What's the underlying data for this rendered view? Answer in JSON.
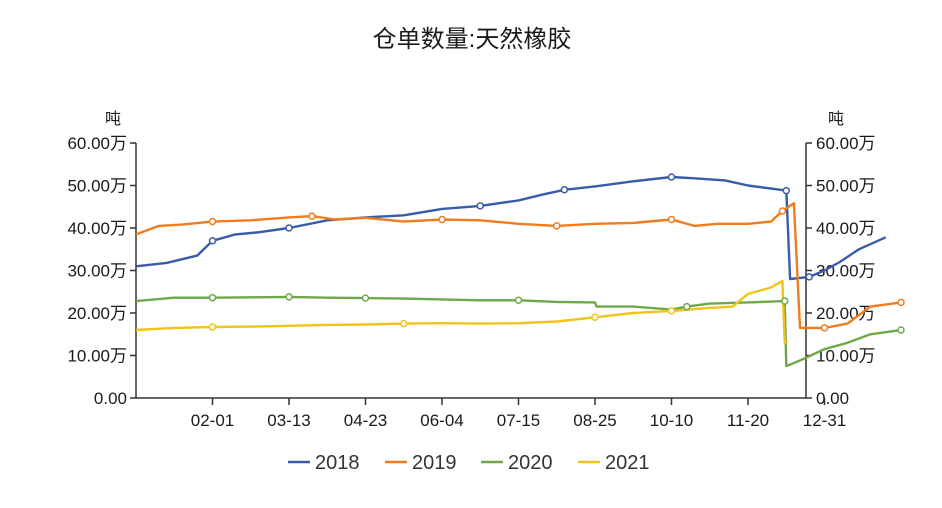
{
  "chart_data": {
    "type": "line",
    "title": "仓单数量:天然橡胶",
    "ylabel_left": "吨",
    "ylabel_right": "吨",
    "ylim": [
      0,
      600000
    ],
    "y_ticks": [
      "0.00",
      "10.00万",
      "20.00万",
      "30.00万",
      "40.00万",
      "50.00万",
      "60.00万"
    ],
    "x_ticks": [
      "02-01",
      "03-13",
      "04-23",
      "06-04",
      "07-15",
      "08-25",
      "10-10",
      "11-20",
      "12-31"
    ],
    "legend_position": "bottom",
    "grid": false,
    "series": [
      {
        "name": "2018",
        "color": "#3a5ba8",
        "points": [
          [
            0.0,
            310000
          ],
          [
            0.4,
            318000
          ],
          [
            0.8,
            335000
          ],
          [
            1.0,
            370000
          ],
          [
            1.3,
            385000
          ],
          [
            1.6,
            390000
          ],
          [
            2.0,
            400000
          ],
          [
            2.5,
            418000
          ],
          [
            3.0,
            425000
          ],
          [
            3.5,
            430000
          ],
          [
            4.0,
            445000
          ],
          [
            4.5,
            452000
          ],
          [
            5.0,
            465000
          ],
          [
            5.3,
            478000
          ],
          [
            5.6,
            490000
          ],
          [
            6.0,
            498000
          ],
          [
            6.5,
            510000
          ],
          [
            7.0,
            520000
          ],
          [
            7.3,
            517000
          ],
          [
            7.7,
            512000
          ],
          [
            8.0,
            500000
          ],
          [
            8.5,
            488000
          ],
          [
            8.55,
            280000
          ],
          [
            8.8,
            285000
          ],
          [
            9.0,
            300000
          ],
          [
            9.2,
            320000
          ],
          [
            9.45,
            350000
          ],
          [
            9.8,
            378000
          ]
        ]
      },
      {
        "name": "2019",
        "color": "#f07c1e",
        "points": [
          [
            0.0,
            385000
          ],
          [
            0.3,
            405000
          ],
          [
            0.6,
            408000
          ],
          [
            1.0,
            415000
          ],
          [
            1.5,
            418000
          ],
          [
            2.0,
            425000
          ],
          [
            2.3,
            428000
          ],
          [
            2.6,
            420000
          ],
          [
            3.0,
            424000
          ],
          [
            3.5,
            415000
          ],
          [
            4.0,
            420000
          ],
          [
            4.5,
            418000
          ],
          [
            5.0,
            410000
          ],
          [
            5.5,
            405000
          ],
          [
            6.0,
            410000
          ],
          [
            6.5,
            412000
          ],
          [
            7.0,
            420000
          ],
          [
            7.3,
            405000
          ],
          [
            7.6,
            410000
          ],
          [
            8.0,
            410000
          ],
          [
            8.3,
            415000
          ],
          [
            8.45,
            440000
          ],
          [
            8.6,
            458000
          ],
          [
            8.68,
            165000
          ],
          [
            9.0,
            165000
          ],
          [
            9.3,
            175000
          ],
          [
            9.6,
            215000
          ],
          [
            10.0,
            225000
          ]
        ]
      },
      {
        "name": "2020",
        "color": "#6fa84a",
        "points": [
          [
            0.0,
            228000
          ],
          [
            0.5,
            236000
          ],
          [
            1.0,
            236000
          ],
          [
            1.5,
            237000
          ],
          [
            2.0,
            238000
          ],
          [
            2.5,
            236000
          ],
          [
            3.0,
            235000
          ],
          [
            3.5,
            234000
          ],
          [
            4.0,
            232000
          ],
          [
            4.5,
            230000
          ],
          [
            5.0,
            230000
          ],
          [
            5.5,
            226000
          ],
          [
            6.0,
            225000
          ],
          [
            6.02,
            215000
          ],
          [
            6.5,
            215000
          ],
          [
            7.0,
            208000
          ],
          [
            7.2,
            215000
          ],
          [
            7.5,
            222000
          ],
          [
            8.0,
            225000
          ],
          [
            8.48,
            228000
          ],
          [
            8.5,
            75000
          ],
          [
            8.7,
            90000
          ],
          [
            9.0,
            115000
          ],
          [
            9.3,
            130000
          ],
          [
            9.6,
            150000
          ],
          [
            10.0,
            160000
          ]
        ]
      },
      {
        "name": "2021",
        "color": "#f2c318",
        "points": [
          [
            0.0,
            160000
          ],
          [
            0.5,
            165000
          ],
          [
            1.0,
            167000
          ],
          [
            1.5,
            168000
          ],
          [
            2.0,
            170000
          ],
          [
            2.5,
            172000
          ],
          [
            3.0,
            173000
          ],
          [
            3.5,
            175000
          ],
          [
            4.0,
            176000
          ],
          [
            4.5,
            175000
          ],
          [
            5.0,
            176000
          ],
          [
            5.5,
            180000
          ],
          [
            6.0,
            190000
          ],
          [
            6.5,
            200000
          ],
          [
            7.0,
            205000
          ],
          [
            7.5,
            212000
          ],
          [
            7.8,
            215000
          ],
          [
            8.0,
            245000
          ],
          [
            8.3,
            260000
          ],
          [
            8.45,
            275000
          ],
          [
            8.48,
            130000
          ],
          [
            8.52,
            133000
          ]
        ]
      }
    ],
    "markers": [
      {
        "series": 0,
        "idx": [
          3,
          6,
          11,
          14,
          17,
          21,
          23
        ]
      },
      {
        "series": 1,
        "idx": [
          3,
          6,
          10,
          13,
          16,
          21,
          24,
          27
        ]
      },
      {
        "series": 2,
        "idx": [
          2,
          4,
          6,
          10,
          16,
          19,
          25
        ]
      },
      {
        "series": 3,
        "idx": [
          2,
          7,
          12,
          14
        ]
      }
    ]
  }
}
